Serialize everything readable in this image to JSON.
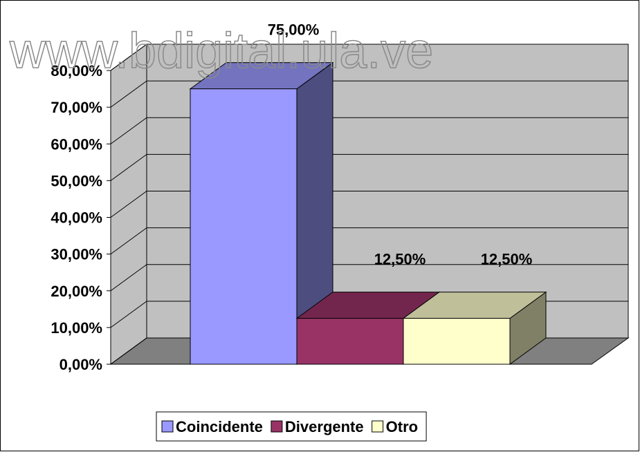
{
  "chart_data": {
    "type": "bar3d",
    "watermark": "www.bdigital.ula.ve",
    "series": [
      {
        "name": "Coincidente",
        "color": "#9999ff",
        "values": [
          75
        ],
        "value_labels": [
          "75,00%"
        ]
      },
      {
        "name": "Divergente",
        "color": "#993366",
        "values": [
          12.5
        ],
        "value_labels": [
          "12,50%"
        ]
      },
      {
        "name": "Otro",
        "color": "#ffffcc",
        "values": [
          12.5
        ],
        "value_labels": [
          "12,50%"
        ]
      }
    ],
    "ylim": [
      0,
      80
    ],
    "yticks": [
      {
        "value": 0,
        "label": "0,00%"
      },
      {
        "value": 10,
        "label": "10,00%"
      },
      {
        "value": 20,
        "label": "20,00%"
      },
      {
        "value": 30,
        "label": "30,00%"
      },
      {
        "value": 40,
        "label": "40,00%"
      },
      {
        "value": 50,
        "label": "50,00%"
      },
      {
        "value": 60,
        "label": "60,00%"
      },
      {
        "value": 70,
        "label": "70,00%"
      },
      {
        "value": 80,
        "label": "80,00%"
      }
    ],
    "grid": true,
    "legend": "bottom"
  }
}
